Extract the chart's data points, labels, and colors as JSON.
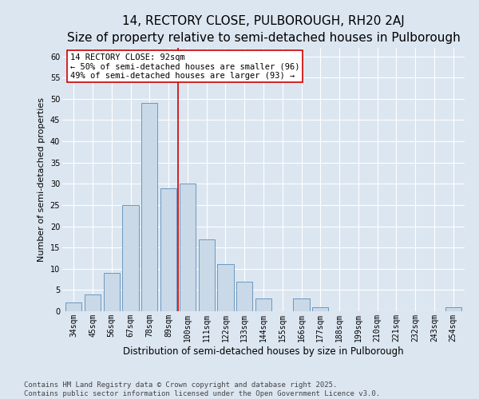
{
  "title": "14, RECTORY CLOSE, PULBOROUGH, RH20 2AJ",
  "subtitle": "Size of property relative to semi-detached houses in Pulborough",
  "xlabel": "Distribution of semi-detached houses by size in Pulborough",
  "ylabel": "Number of semi-detached properties",
  "categories": [
    "34sqm",
    "45sqm",
    "56sqm",
    "67sqm",
    "78sqm",
    "89sqm",
    "100sqm",
    "111sqm",
    "122sqm",
    "133sqm",
    "144sqm",
    "155sqm",
    "166sqm",
    "177sqm",
    "188sqm",
    "199sqm",
    "210sqm",
    "221sqm",
    "232sqm",
    "243sqm",
    "254sqm"
  ],
  "values": [
    2,
    4,
    9,
    25,
    49,
    29,
    30,
    17,
    11,
    7,
    3,
    0,
    3,
    1,
    0,
    0,
    0,
    0,
    0,
    0,
    1
  ],
  "bar_color": "#c9d9e8",
  "bar_edge_color": "#5b8db8",
  "vline_x": 5.5,
  "vline_color": "#cc0000",
  "annotation_text": "14 RECTORY CLOSE: 92sqm\n← 50% of semi-detached houses are smaller (96)\n49% of semi-detached houses are larger (93) →",
  "annotation_box_color": "#ffffff",
  "annotation_box_edge": "#cc0000",
  "ylim": [
    0,
    62
  ],
  "yticks": [
    0,
    5,
    10,
    15,
    20,
    25,
    30,
    35,
    40,
    45,
    50,
    55,
    60
  ],
  "background_color": "#dce6f1",
  "footer": "Contains HM Land Registry data © Crown copyright and database right 2025.\nContains public sector information licensed under the Open Government Licence v3.0.",
  "title_fontsize": 11,
  "subtitle_fontsize": 9,
  "xlabel_fontsize": 8.5,
  "ylabel_fontsize": 8,
  "tick_fontsize": 7,
  "annotation_fontsize": 7.5,
  "footer_fontsize": 6.5
}
